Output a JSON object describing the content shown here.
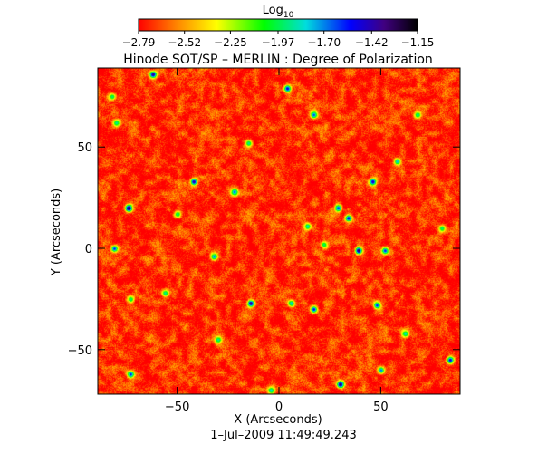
{
  "chart_data": {
    "type": "heatmap",
    "title": "Hinode SOT/SP – MERLIN : Degree of Polarization",
    "timestamp": "1–Jul–2009 11:49:49.243",
    "xlabel": "X (Arcseconds)",
    "ylabel": "Y (Arcseconds)",
    "xlim": [
      -89,
      89
    ],
    "ylim": [
      -72,
      89
    ],
    "x_ticks": [
      -50,
      0,
      50
    ],
    "y_ticks": [
      -50,
      0,
      50
    ],
    "x_tick_labels": [
      "−50",
      "0",
      "50"
    ],
    "y_tick_labels": [
      "−50",
      "0",
      "50"
    ],
    "colorbar": {
      "title_base": "Log",
      "title_sub": "10",
      "min": -2.79,
      "max": -1.15,
      "ticks": [
        -2.79,
        -2.52,
        -2.25,
        -1.97,
        -1.7,
        -1.42,
        -1.15
      ],
      "tick_labels": [
        "−2.79",
        "−2.52",
        "−2.25",
        "−1.97",
        "−1.70",
        "−1.42",
        "−1.15"
      ],
      "colors": [
        "#ff0000",
        "#ff8800",
        "#ffff00",
        "#00ff00",
        "#00dddd",
        "#0000ff",
        "#400080",
        "#000000"
      ]
    },
    "background_level": -2.72,
    "noise_amplitude": 0.22,
    "grid": false,
    "features": [
      {
        "x": -62,
        "y": 86,
        "value": -1.3
      },
      {
        "x": -82,
        "y": 75,
        "value": -1.9
      },
      {
        "x": -80,
        "y": 62,
        "value": -1.85
      },
      {
        "x": 4,
        "y": 79,
        "value": -1.45
      },
      {
        "x": 17,
        "y": 66,
        "value": -1.6
      },
      {
        "x": 68,
        "y": 66,
        "value": -1.85
      },
      {
        "x": -42,
        "y": 33,
        "value": -1.35
      },
      {
        "x": -22,
        "y": 28,
        "value": -1.65
      },
      {
        "x": 46,
        "y": 33,
        "value": -1.4
      },
      {
        "x": -74,
        "y": 20,
        "value": -1.2
      },
      {
        "x": -50,
        "y": 17,
        "value": -1.9
      },
      {
        "x": 29,
        "y": 20,
        "value": -1.55
      },
      {
        "x": 34,
        "y": 15,
        "value": -1.45
      },
      {
        "x": 22,
        "y": 2,
        "value": -1.9
      },
      {
        "x": 39,
        "y": -1,
        "value": -1.25
      },
      {
        "x": 14,
        "y": 11,
        "value": -1.8
      },
      {
        "x": 52,
        "y": -1,
        "value": -1.55
      },
      {
        "x": -81,
        "y": 0,
        "value": -1.55
      },
      {
        "x": -32,
        "y": -4,
        "value": -1.7
      },
      {
        "x": -14,
        "y": -27,
        "value": -1.3
      },
      {
        "x": 6,
        "y": -27,
        "value": -1.75
      },
      {
        "x": 17,
        "y": -30,
        "value": -1.5
      },
      {
        "x": 48,
        "y": -28,
        "value": -1.55
      },
      {
        "x": -73,
        "y": -25,
        "value": -1.9
      },
      {
        "x": -56,
        "y": -22,
        "value": -1.85
      },
      {
        "x": 62,
        "y": -42,
        "value": -1.8
      },
      {
        "x": -30,
        "y": -45,
        "value": -1.85
      },
      {
        "x": 84,
        "y": -55,
        "value": -1.45
      },
      {
        "x": -73,
        "y": -62,
        "value": -1.55
      },
      {
        "x": 30,
        "y": -67,
        "value": -1.25
      },
      {
        "x": 50,
        "y": -60,
        "value": -1.65
      },
      {
        "x": -4,
        "y": -70,
        "value": -1.8
      },
      {
        "x": 80,
        "y": 10,
        "value": -1.9
      },
      {
        "x": -15,
        "y": 52,
        "value": -1.85
      },
      {
        "x": 58,
        "y": 43,
        "value": -1.75
      }
    ]
  }
}
